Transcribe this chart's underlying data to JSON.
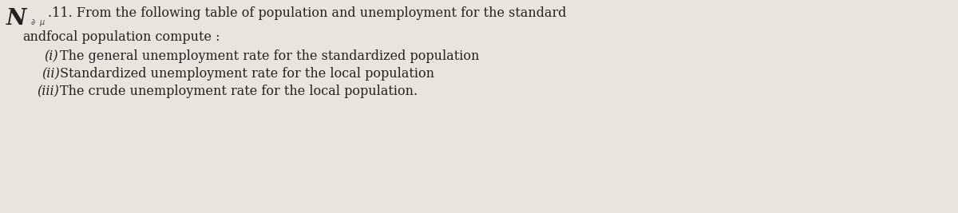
{
  "background_color": "#e8e4de",
  "number_symbol": "N",
  "question_number": ".11.",
  "line1": " From the following table of population and unemployment for the standard",
  "line2_prefix": "and",
  "line2_suffix": "focal population compute :",
  "items": [
    {
      "label": "(i)",
      "text": "  The general unemployment rate for the standardized population"
    },
    {
      "label": "(ii)",
      "text": "  Standardized unemployment rate for the local population"
    },
    {
      "label": "(iii)",
      "text": "The crude unemployment rate for the local population."
    }
  ],
  "font_size_main": 11.5,
  "font_size_N": 20,
  "font_size_items": 11.5,
  "text_color": "#222222"
}
